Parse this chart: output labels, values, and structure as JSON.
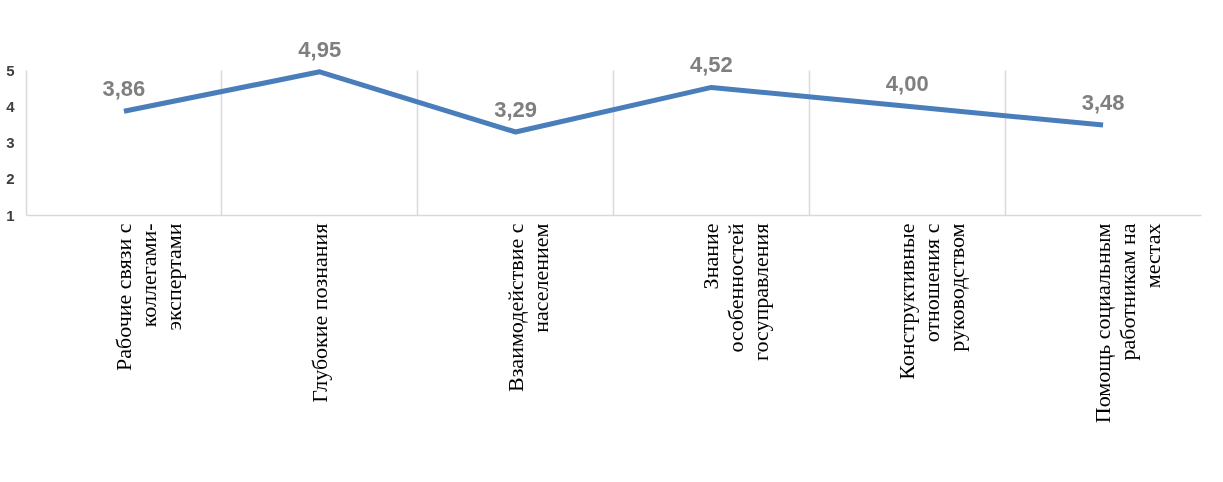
{
  "chart_data": {
    "type": "line",
    "categories": [
      "Рабочие связи с коллегами-экспертами",
      "Глубокие познания",
      "Взаимодействие с населением",
      "Знание особенностей госуправления",
      "Конструктивные отношения с руководством",
      "Помощь социальным работникам на местах"
    ],
    "series": [
      {
        "color": "#4a7ebb",
        "values": [
          3.86,
          4.95,
          3.29,
          4.52,
          4.0,
          3.48
        ]
      }
    ],
    "value_labels": [
      "3,86",
      "4,95",
      "3,29",
      "4,52",
      "4,00",
      "3,48"
    ],
    "ylim": [
      1,
      5
    ],
    "yticks": [
      1,
      2,
      3,
      4,
      5
    ],
    "grid": "x",
    "marker": "none",
    "line_style": "solid"
  }
}
